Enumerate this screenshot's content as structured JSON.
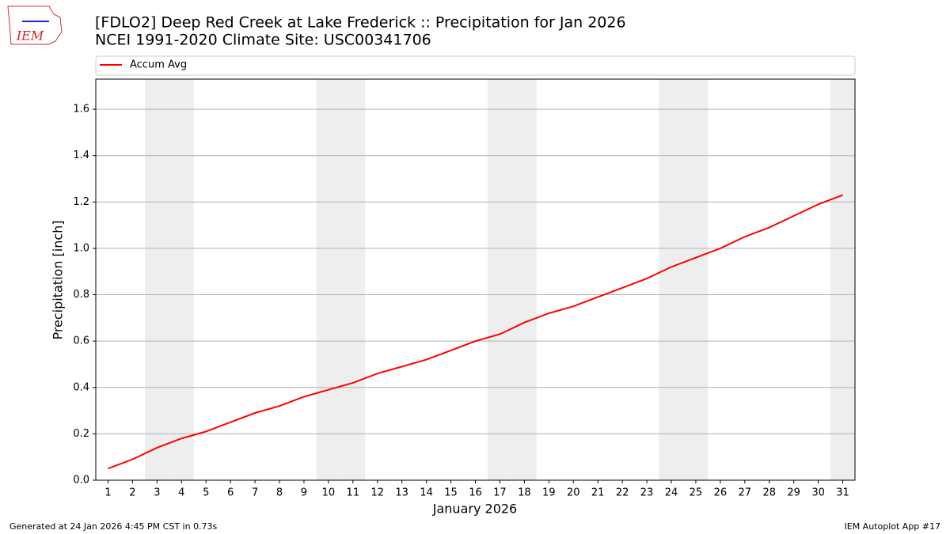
{
  "chart_data": {
    "type": "line",
    "title": "[FDLO2] Deep Red Creek at Lake Frederick :: Precipitation for Jan 2026",
    "subtitle": "NCEI 1991-2020 Climate Site: USC00341706",
    "x_label": "January 2026",
    "y_label": "Precipitation [inch]",
    "x": [
      1,
      2,
      3,
      4,
      5,
      6,
      7,
      8,
      9,
      10,
      11,
      12,
      13,
      14,
      15,
      16,
      17,
      18,
      19,
      20,
      21,
      22,
      23,
      24,
      25,
      26,
      27,
      28,
      29,
      30,
      31
    ],
    "series": [
      {
        "name": "Accum Avg",
        "color": "#ff0000",
        "values": [
          0.05,
          0.09,
          0.14,
          0.18,
          0.21,
          0.25,
          0.29,
          0.32,
          0.36,
          0.39,
          0.42,
          0.46,
          0.49,
          0.52,
          0.56,
          0.6,
          0.63,
          0.68,
          0.72,
          0.75,
          0.79,
          0.83,
          0.87,
          0.92,
          0.96,
          1.0,
          1.05,
          1.09,
          1.14,
          1.19,
          1.23
        ]
      }
    ],
    "xlim": [
      0.5,
      31.5
    ],
    "xticks": [
      1,
      2,
      3,
      4,
      5,
      6,
      7,
      8,
      9,
      10,
      11,
      12,
      13,
      14,
      15,
      16,
      17,
      18,
      19,
      20,
      21,
      22,
      23,
      24,
      25,
      26,
      27,
      28,
      29,
      30,
      31
    ],
    "ylim": [
      0,
      1.73
    ],
    "yticks": [
      {
        "value": 0,
        "label": "0.0"
      },
      {
        "value": 0.2,
        "label": "0.2"
      },
      {
        "value": 0.4,
        "label": "0.4"
      },
      {
        "value": 0.6,
        "label": "0.6"
      },
      {
        "value": 0.8,
        "label": "0.8"
      },
      {
        "value": 1.0,
        "label": "1.0"
      },
      {
        "value": 1.2,
        "label": "1.2"
      },
      {
        "value": 1.4,
        "label": "1.4"
      },
      {
        "value": 1.6,
        "label": "1.6"
      }
    ],
    "shaded_days": [
      3,
      4,
      10,
      11,
      17,
      18,
      24,
      25,
      31
    ],
    "shade_color": "#eeeeee",
    "grid": true,
    "legend": "top",
    "footer_left": "Generated at 24 Jan 2026 4:45 PM CST in 0.73s",
    "footer_right": "IEM Autoplot App #17",
    "logo": "IEM"
  }
}
